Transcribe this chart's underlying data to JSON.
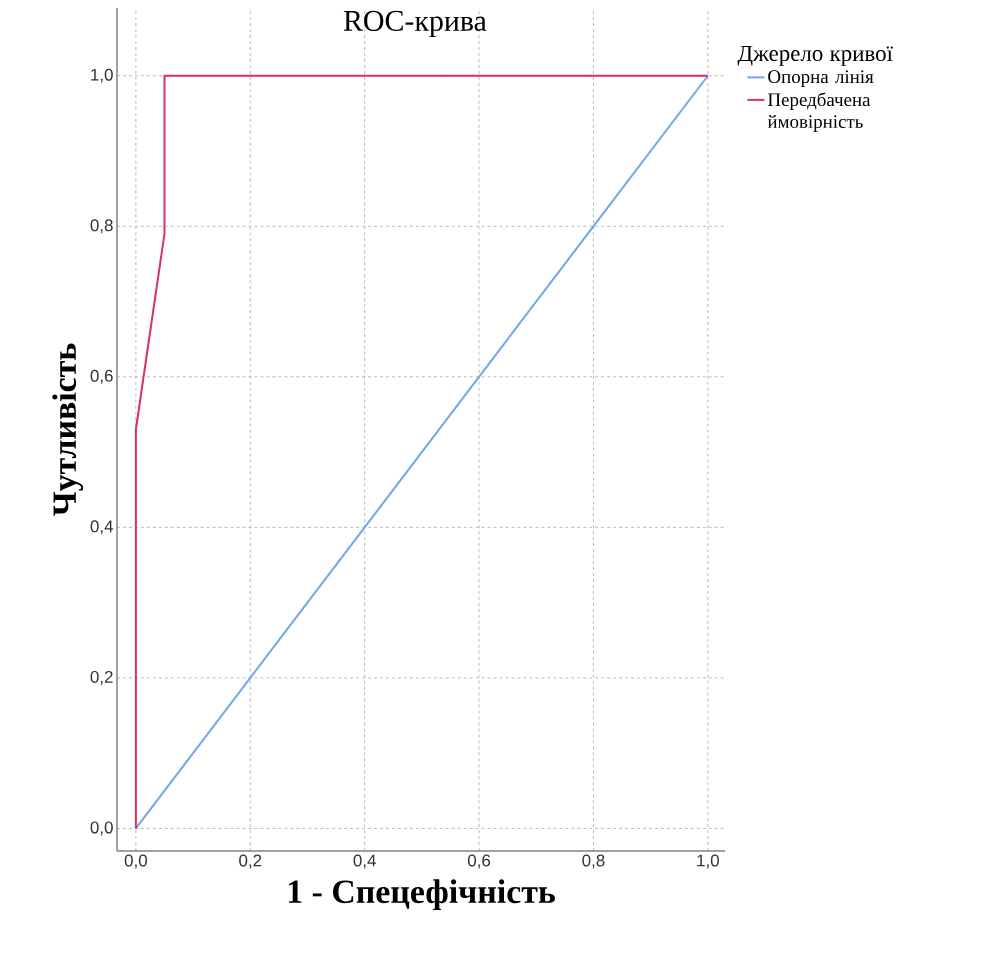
{
  "chart_data": {
    "type": "line",
    "title": "ROC-крива",
    "xlabel": "1 - Спецефічність",
    "ylabel": "Чутливість",
    "legend_title": "Джерело кривої",
    "series": [
      {
        "name": "Опорна лінія",
        "color": "#6ea6e8",
        "x": [
          0,
          1
        ],
        "values": [
          0,
          1
        ]
      },
      {
        "name": "Передбачена ймовірність",
        "color": "#d9325a",
        "x": [
          0,
          0,
          0.05,
          0.05,
          1
        ],
        "values": [
          0,
          0.53,
          0.79,
          1,
          1
        ]
      }
    ],
    "xlim": [
      -0.033,
      1.03
    ],
    "ylim": [
      -0.03,
      1.09
    ],
    "xticks": [
      {
        "value": 0,
        "label": "0,0"
      },
      {
        "value": 0.2,
        "label": "0,2"
      },
      {
        "value": 0.4,
        "label": "0,4"
      },
      {
        "value": 0.6,
        "label": "0,6"
      },
      {
        "value": 0.8,
        "label": "0,8"
      },
      {
        "value": 1,
        "label": "1,0"
      }
    ],
    "yticks": [
      {
        "value": 0,
        "label": "0,0"
      },
      {
        "value": 0.2,
        "label": "0,2"
      },
      {
        "value": 0.4,
        "label": "0,4"
      },
      {
        "value": 0.6,
        "label": "0,6"
      },
      {
        "value": 0.8,
        "label": "0,8"
      },
      {
        "value": 1,
        "label": "1,0"
      }
    ],
    "grid": true,
    "legend": "top right",
    "marker": "none",
    "line_style": "solid"
  }
}
